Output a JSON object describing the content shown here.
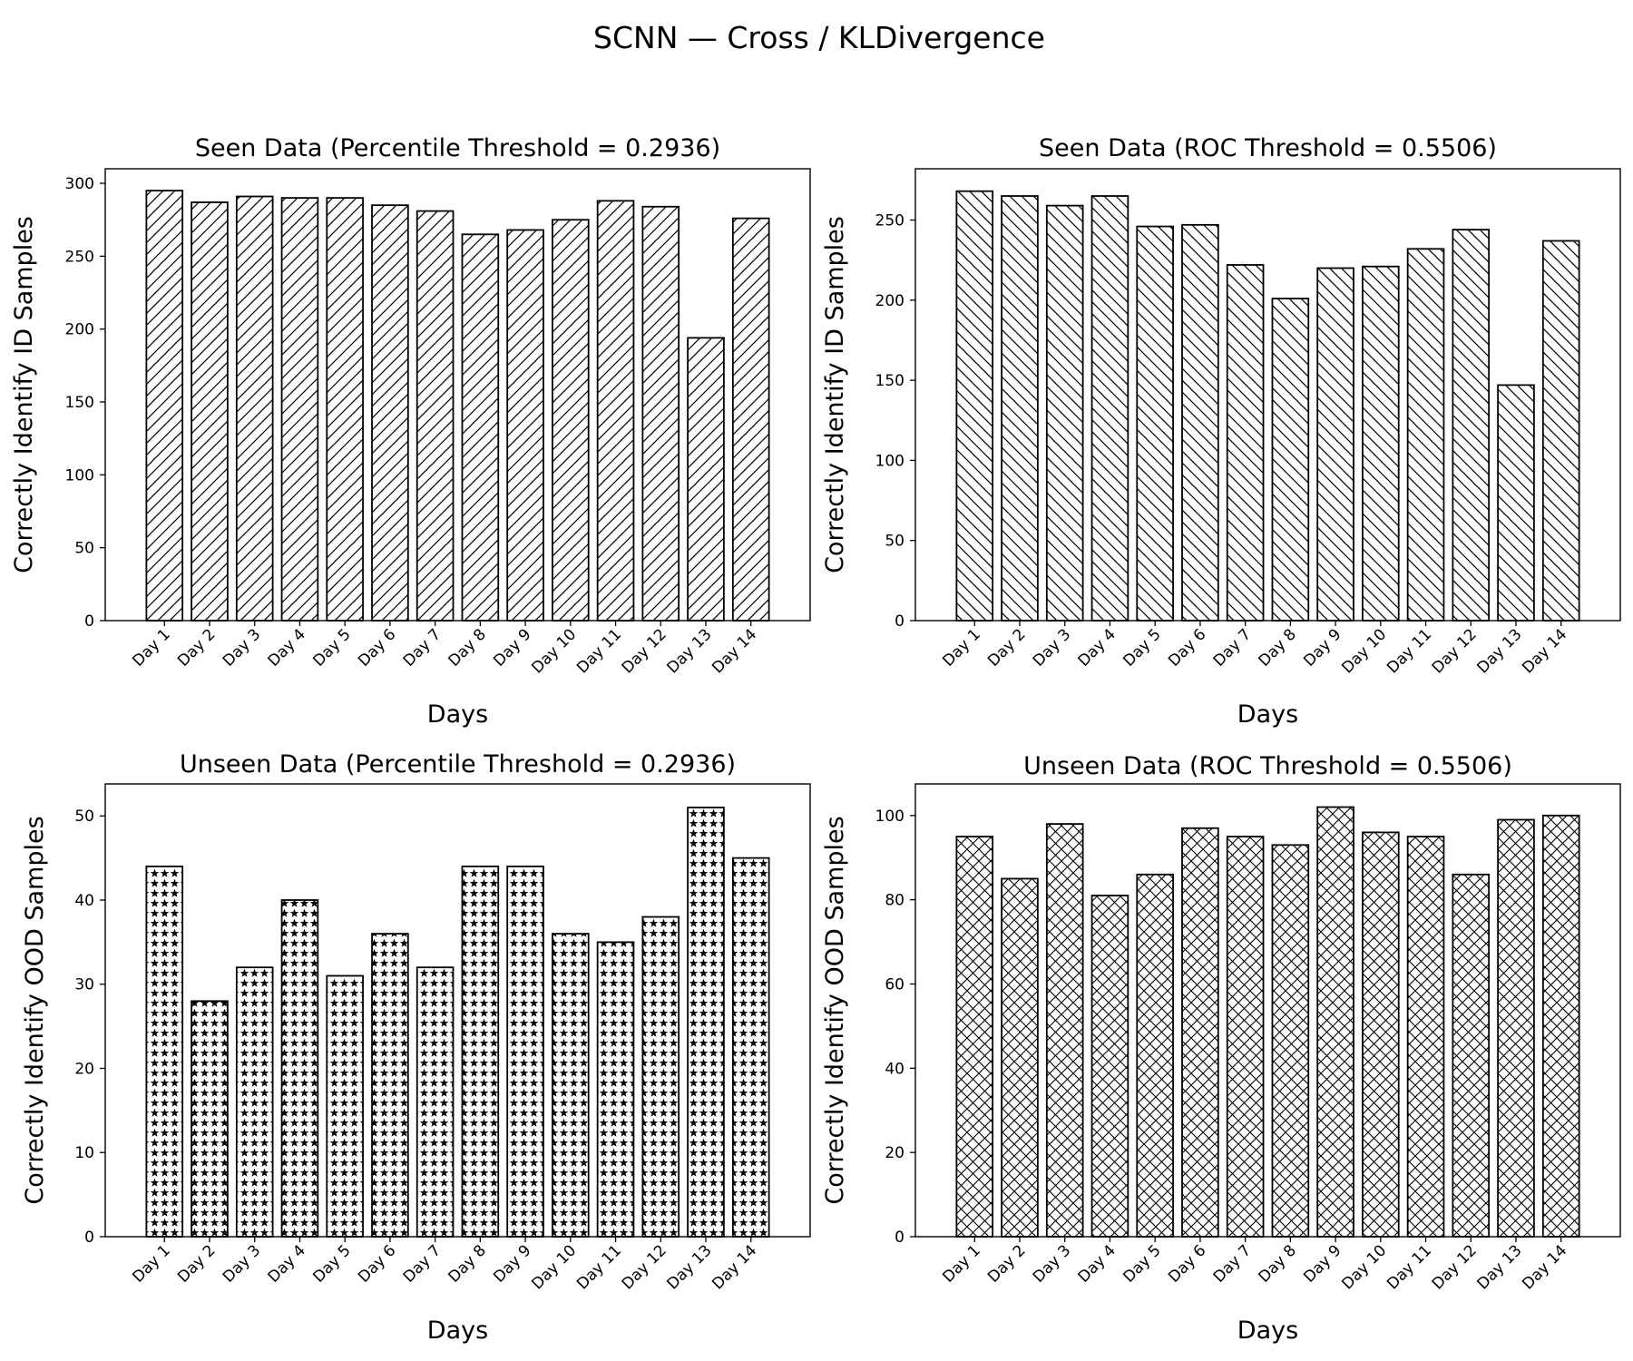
{
  "figure": {
    "suptitle": "SCNN — Cross / KLDivergence"
  },
  "chart_data": [
    {
      "type": "bar",
      "title": "Seen Data (Percentile Threshold = 0.2936)",
      "xlabel": "Days",
      "ylabel": "Correctly Identify ID Samples",
      "categories": [
        "Day 1",
        "Day 2",
        "Day 3",
        "Day 4",
        "Day 5",
        "Day 6",
        "Day 7",
        "Day 8",
        "Day 9",
        "Day 10",
        "Day 11",
        "Day 12",
        "Day 13",
        "Day 14"
      ],
      "values": [
        295,
        287,
        291,
        290,
        290,
        285,
        281,
        265,
        268,
        275,
        288,
        284,
        194,
        276
      ],
      "ylim": [
        0,
        310
      ],
      "yticks": [
        0,
        50,
        100,
        150,
        200,
        250,
        300
      ],
      "hatch": "forward-diagonal",
      "grid": false
    },
    {
      "type": "bar",
      "title": "Seen Data (ROC Threshold = 0.5506)",
      "xlabel": "Days",
      "ylabel": "Correctly Identify ID Samples",
      "categories": [
        "Day 1",
        "Day 2",
        "Day 3",
        "Day 4",
        "Day 5",
        "Day 6",
        "Day 7",
        "Day 8",
        "Day 9",
        "Day 10",
        "Day 11",
        "Day 12",
        "Day 13",
        "Day 14"
      ],
      "values": [
        268,
        265,
        259,
        265,
        246,
        247,
        222,
        201,
        220,
        221,
        232,
        244,
        147,
        237
      ],
      "ylim": [
        0,
        282
      ],
      "yticks": [
        0,
        50,
        100,
        150,
        200,
        250
      ],
      "hatch": "back-diagonal",
      "grid": false
    },
    {
      "type": "bar",
      "title": "Unseen Data (Percentile Threshold = 0.2936)",
      "xlabel": "Days",
      "ylabel": "Correctly Identify OOD Samples",
      "categories": [
        "Day 1",
        "Day 2",
        "Day 3",
        "Day 4",
        "Day 5",
        "Day 6",
        "Day 7",
        "Day 8",
        "Day 9",
        "Day 10",
        "Day 11",
        "Day 12",
        "Day 13",
        "Day 14"
      ],
      "values": [
        44,
        28,
        32,
        40,
        31,
        36,
        32,
        44,
        44,
        36,
        35,
        38,
        51,
        45
      ],
      "ylim": [
        0,
        53.8
      ],
      "yticks": [
        0,
        10,
        20,
        30,
        40,
        50
      ],
      "hatch": "stars",
      "grid": false
    },
    {
      "type": "bar",
      "title": "Unseen Data (ROC Threshold = 0.5506)",
      "xlabel": "Days",
      "ylabel": "Correctly Identify OOD Samples",
      "categories": [
        "Day 1",
        "Day 2",
        "Day 3",
        "Day 4",
        "Day 5",
        "Day 6",
        "Day 7",
        "Day 8",
        "Day 9",
        "Day 10",
        "Day 11",
        "Day 12",
        "Day 13",
        "Day 14"
      ],
      "values": [
        95,
        85,
        98,
        81,
        86,
        97,
        95,
        93,
        102,
        96,
        95,
        86,
        99,
        100
      ],
      "ylim": [
        0,
        107.5
      ],
      "yticks": [
        0,
        20,
        40,
        60,
        80,
        100
      ],
      "hatch": "cross-hatch",
      "grid": false
    }
  ]
}
